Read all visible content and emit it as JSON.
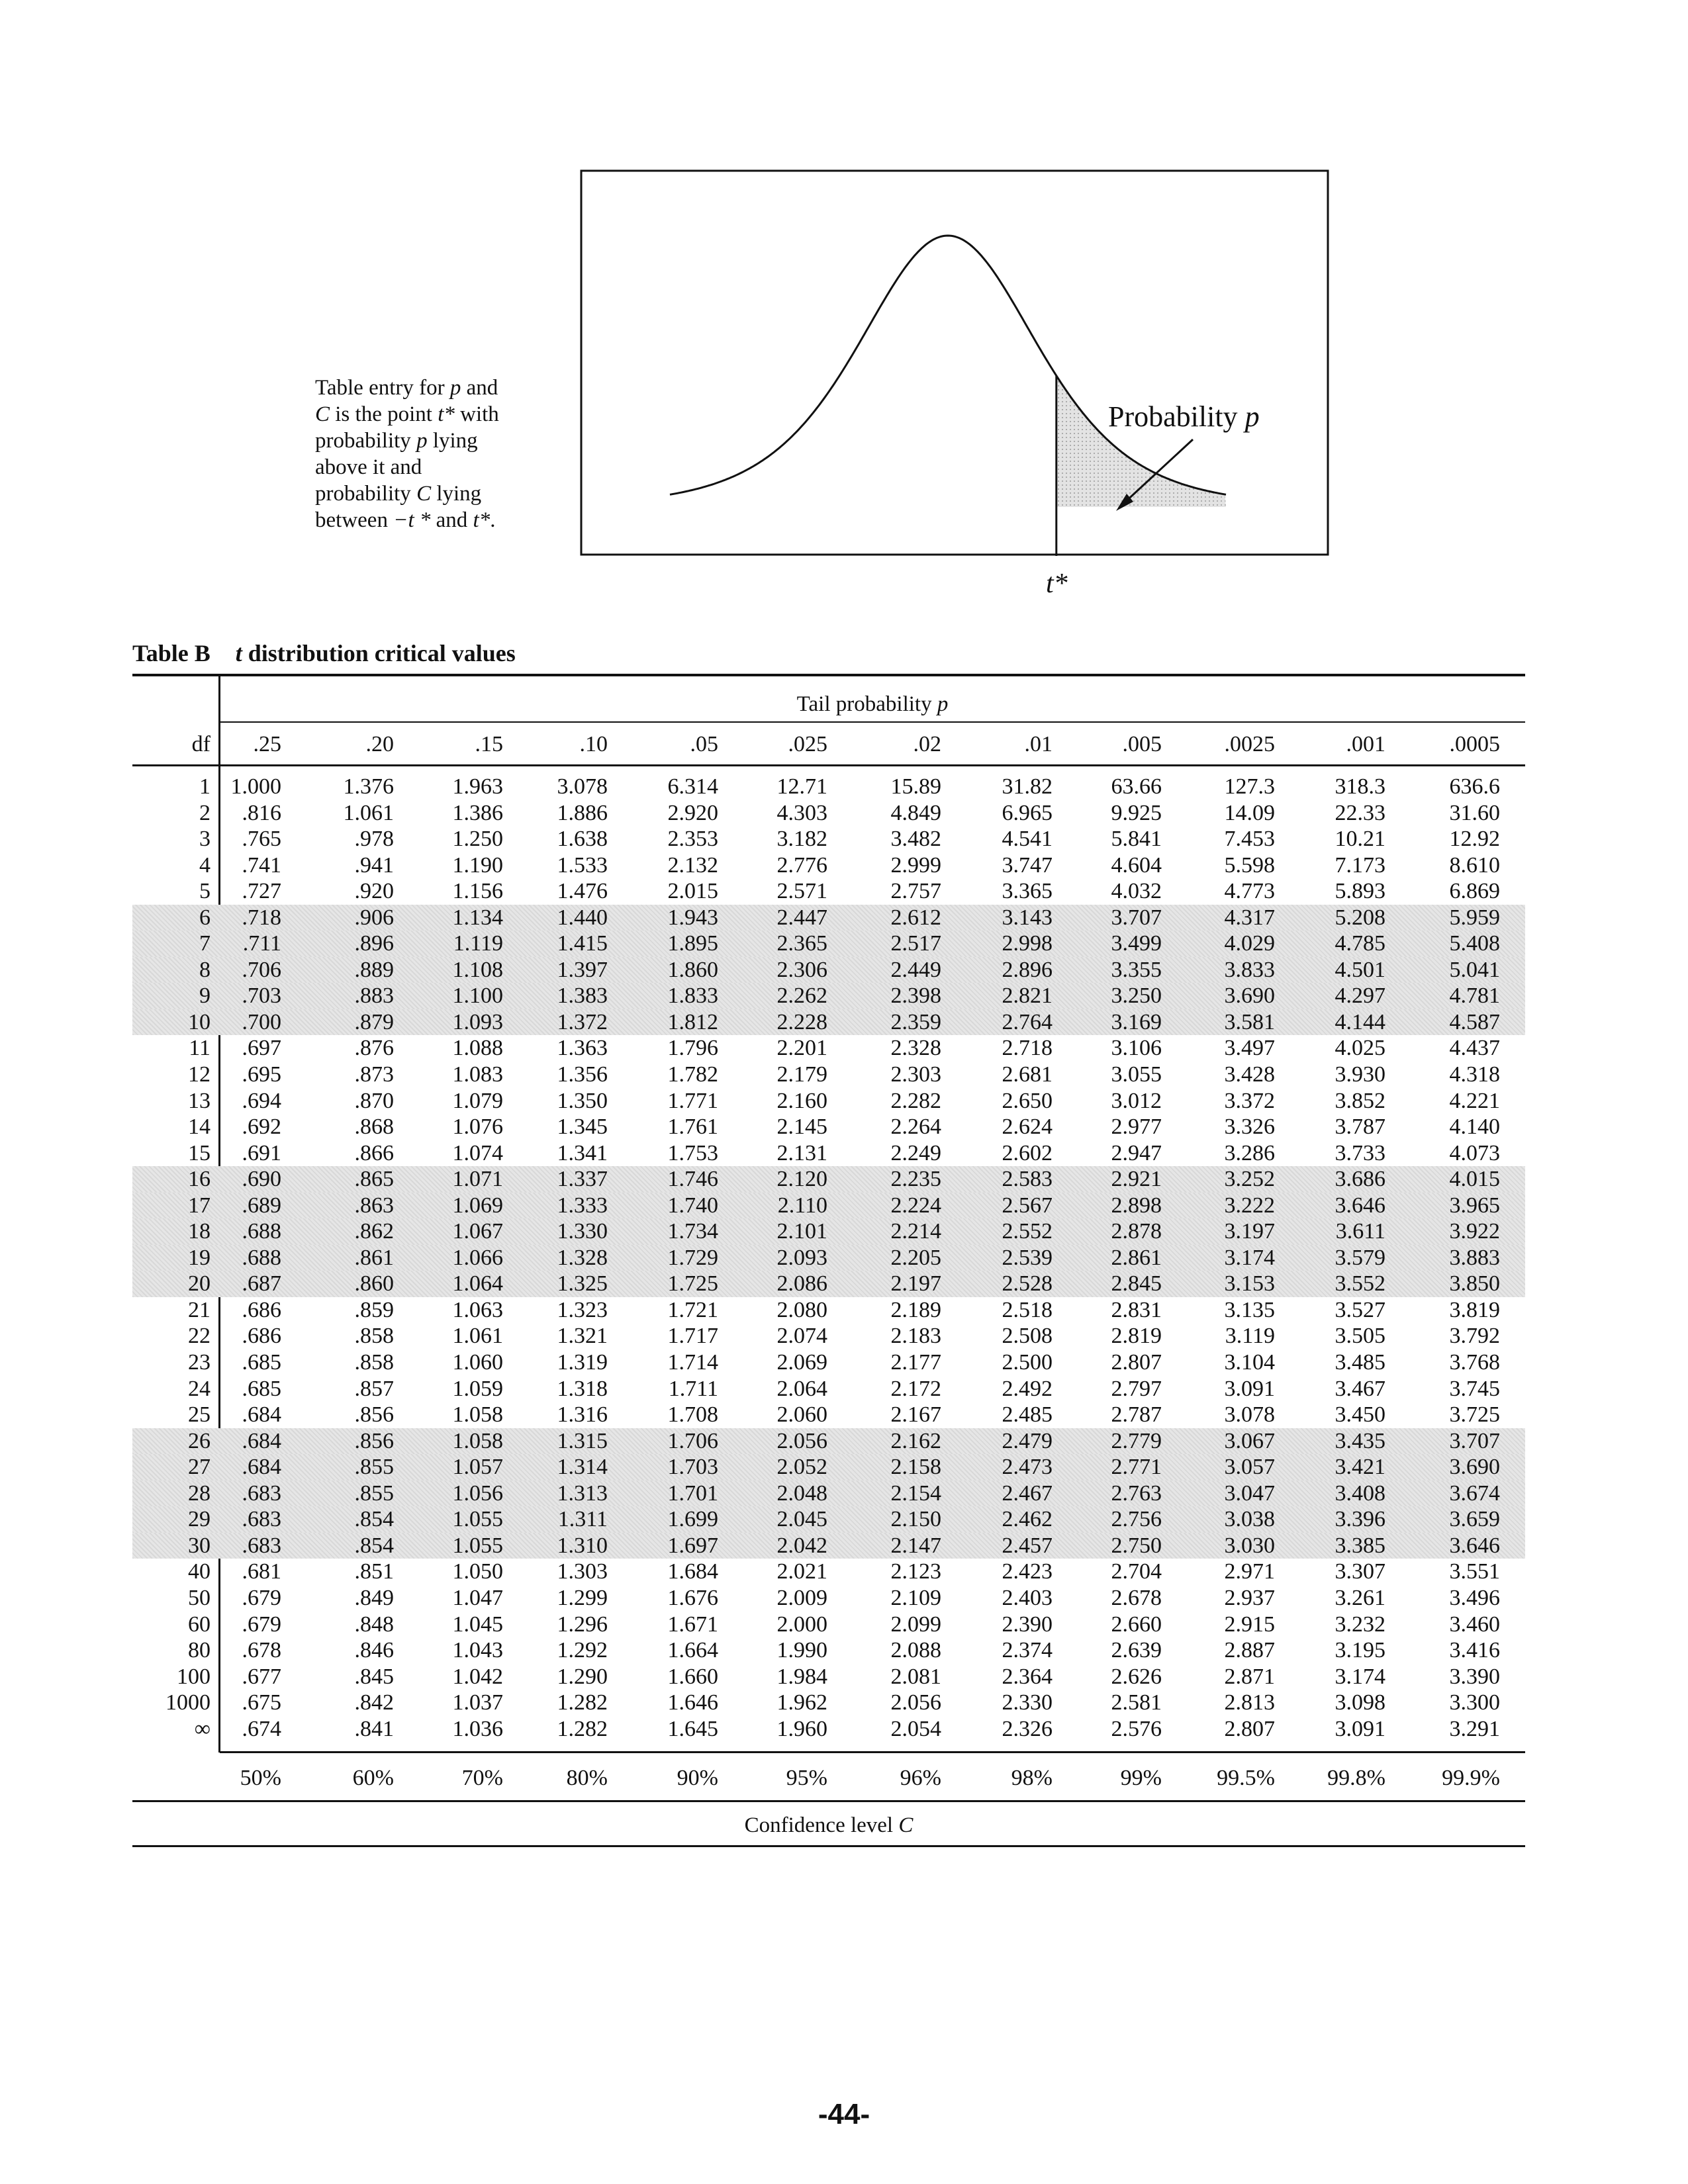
{
  "intro": {
    "line1a": "Table entry for ",
    "line1b": "p",
    "line1c": " and",
    "line2a": "C",
    "line2b": " is the point ",
    "line2c": "t*",
    "line2d": " with",
    "line3a": "probability ",
    "line3b": "p",
    "line3c": " lying",
    "line4": "above it and",
    "line5a": "probability ",
    "line5b": "C",
    "line5c": " lying",
    "line6a": "between  ",
    "line6b": "−t *",
    "line6c": "  and ",
    "line6d": "t*",
    "line6e": "."
  },
  "figure": {
    "probability_label": "Probability",
    "probability_symbol": "p",
    "tstar": "t*"
  },
  "table": {
    "title_letter": "Table B",
    "title_t": "t",
    "title_rest": " distribution critical values",
    "tail_label": "Tail probability ",
    "tail_symbol": "p",
    "df_label": "df",
    "headers": [
      ".25",
      ".20",
      ".15",
      ".10",
      ".05",
      ".025",
      ".02",
      ".01",
      ".005",
      ".0025",
      ".001",
      ".0005"
    ],
    "confidence": [
      "50%",
      "60%",
      "70%",
      "80%",
      "90%",
      "95%",
      "96%",
      "98%",
      "99%",
      "99.5%",
      "99.8%",
      "99.9%"
    ],
    "confidence_label": "Confidence level ",
    "confidence_symbol": "C",
    "rows": [
      {
        "df": "1",
        "v": [
          "1.000",
          "1.376",
          "1.963",
          "3.078",
          "6.314",
          "12.71",
          "15.89",
          "31.82",
          "63.66",
          "127.3",
          "318.3",
          "636.6"
        ]
      },
      {
        "df": "2",
        "v": [
          ".816",
          "1.061",
          "1.386",
          "1.886",
          "2.920",
          "4.303",
          "4.849",
          "6.965",
          "9.925",
          "14.09",
          "22.33",
          "31.60"
        ]
      },
      {
        "df": "3",
        "v": [
          ".765",
          ".978",
          "1.250",
          "1.638",
          "2.353",
          "3.182",
          "3.482",
          "4.541",
          "5.841",
          "7.453",
          "10.21",
          "12.92"
        ]
      },
      {
        "df": "4",
        "v": [
          ".741",
          ".941",
          "1.190",
          "1.533",
          "2.132",
          "2.776",
          "2.999",
          "3.747",
          "4.604",
          "5.598",
          "7.173",
          "8.610"
        ]
      },
      {
        "df": "5",
        "v": [
          ".727",
          ".920",
          "1.156",
          "1.476",
          "2.015",
          "2.571",
          "2.757",
          "3.365",
          "4.032",
          "4.773",
          "5.893",
          "6.869"
        ]
      },
      {
        "df": "6",
        "v": [
          ".718",
          ".906",
          "1.134",
          "1.440",
          "1.943",
          "2.447",
          "2.612",
          "3.143",
          "3.707",
          "4.317",
          "5.208",
          "5.959"
        ]
      },
      {
        "df": "7",
        "v": [
          ".711",
          ".896",
          "1.119",
          "1.415",
          "1.895",
          "2.365",
          "2.517",
          "2.998",
          "3.499",
          "4.029",
          "4.785",
          "5.408"
        ]
      },
      {
        "df": "8",
        "v": [
          ".706",
          ".889",
          "1.108",
          "1.397",
          "1.860",
          "2.306",
          "2.449",
          "2.896",
          "3.355",
          "3.833",
          "4.501",
          "5.041"
        ]
      },
      {
        "df": "9",
        "v": [
          ".703",
          ".883",
          "1.100",
          "1.383",
          "1.833",
          "2.262",
          "2.398",
          "2.821",
          "3.250",
          "3.690",
          "4.297",
          "4.781"
        ]
      },
      {
        "df": "10",
        "v": [
          ".700",
          ".879",
          "1.093",
          "1.372",
          "1.812",
          "2.228",
          "2.359",
          "2.764",
          "3.169",
          "3.581",
          "4.144",
          "4.587"
        ]
      },
      {
        "df": "11",
        "v": [
          ".697",
          ".876",
          "1.088",
          "1.363",
          "1.796",
          "2.201",
          "2.328",
          "2.718",
          "3.106",
          "3.497",
          "4.025",
          "4.437"
        ]
      },
      {
        "df": "12",
        "v": [
          ".695",
          ".873",
          "1.083",
          "1.356",
          "1.782",
          "2.179",
          "2.303",
          "2.681",
          "3.055",
          "3.428",
          "3.930",
          "4.318"
        ]
      },
      {
        "df": "13",
        "v": [
          ".694",
          ".870",
          "1.079",
          "1.350",
          "1.771",
          "2.160",
          "2.282",
          "2.650",
          "3.012",
          "3.372",
          "3.852",
          "4.221"
        ]
      },
      {
        "df": "14",
        "v": [
          ".692",
          ".868",
          "1.076",
          "1.345",
          "1.761",
          "2.145",
          "2.264",
          "2.624",
          "2.977",
          "3.326",
          "3.787",
          "4.140"
        ]
      },
      {
        "df": "15",
        "v": [
          ".691",
          ".866",
          "1.074",
          "1.341",
          "1.753",
          "2.131",
          "2.249",
          "2.602",
          "2.947",
          "3.286",
          "3.733",
          "4.073"
        ]
      },
      {
        "df": "16",
        "v": [
          ".690",
          ".865",
          "1.071",
          "1.337",
          "1.746",
          "2.120",
          "2.235",
          "2.583",
          "2.921",
          "3.252",
          "3.686",
          "4.015"
        ]
      },
      {
        "df": "17",
        "v": [
          ".689",
          ".863",
          "1.069",
          "1.333",
          "1.740",
          "2.110",
          "2.224",
          "2.567",
          "2.898",
          "3.222",
          "3.646",
          "3.965"
        ]
      },
      {
        "df": "18",
        "v": [
          ".688",
          ".862",
          "1.067",
          "1.330",
          "1.734",
          "2.101",
          "2.214",
          "2.552",
          "2.878",
          "3.197",
          "3.611",
          "3.922"
        ]
      },
      {
        "df": "19",
        "v": [
          ".688",
          ".861",
          "1.066",
          "1.328",
          "1.729",
          "2.093",
          "2.205",
          "2.539",
          "2.861",
          "3.174",
          "3.579",
          "3.883"
        ]
      },
      {
        "df": "20",
        "v": [
          ".687",
          ".860",
          "1.064",
          "1.325",
          "1.725",
          "2.086",
          "2.197",
          "2.528",
          "2.845",
          "3.153",
          "3.552",
          "3.850"
        ]
      },
      {
        "df": "21",
        "v": [
          ".686",
          ".859",
          "1.063",
          "1.323",
          "1.721",
          "2.080",
          "2.189",
          "2.518",
          "2.831",
          "3.135",
          "3.527",
          "3.819"
        ]
      },
      {
        "df": "22",
        "v": [
          ".686",
          ".858",
          "1.061",
          "1.321",
          "1.717",
          "2.074",
          "2.183",
          "2.508",
          "2.819",
          "3.119",
          "3.505",
          "3.792"
        ]
      },
      {
        "df": "23",
        "v": [
          ".685",
          ".858",
          "1.060",
          "1.319",
          "1.714",
          "2.069",
          "2.177",
          "2.500",
          "2.807",
          "3.104",
          "3.485",
          "3.768"
        ]
      },
      {
        "df": "24",
        "v": [
          ".685",
          ".857",
          "1.059",
          "1.318",
          "1.711",
          "2.064",
          "2.172",
          "2.492",
          "2.797",
          "3.091",
          "3.467",
          "3.745"
        ]
      },
      {
        "df": "25",
        "v": [
          ".684",
          ".856",
          "1.058",
          "1.316",
          "1.708",
          "2.060",
          "2.167",
          "2.485",
          "2.787",
          "3.078",
          "3.450",
          "3.725"
        ]
      },
      {
        "df": "26",
        "v": [
          ".684",
          ".856",
          "1.058",
          "1.315",
          "1.706",
          "2.056",
          "2.162",
          "2.479",
          "2.779",
          "3.067",
          "3.435",
          "3.707"
        ]
      },
      {
        "df": "27",
        "v": [
          ".684",
          ".855",
          "1.057",
          "1.314",
          "1.703",
          "2.052",
          "2.158",
          "2.473",
          "2.771",
          "3.057",
          "3.421",
          "3.690"
        ]
      },
      {
        "df": "28",
        "v": [
          ".683",
          ".855",
          "1.056",
          "1.313",
          "1.701",
          "2.048",
          "2.154",
          "2.467",
          "2.763",
          "3.047",
          "3.408",
          "3.674"
        ]
      },
      {
        "df": "29",
        "v": [
          ".683",
          ".854",
          "1.055",
          "1.311",
          "1.699",
          "2.045",
          "2.150",
          "2.462",
          "2.756",
          "3.038",
          "3.396",
          "3.659"
        ]
      },
      {
        "df": "30",
        "v": [
          ".683",
          ".854",
          "1.055",
          "1.310",
          "1.697",
          "2.042",
          "2.147",
          "2.457",
          "2.750",
          "3.030",
          "3.385",
          "3.646"
        ]
      },
      {
        "df": "40",
        "v": [
          ".681",
          ".851",
          "1.050",
          "1.303",
          "1.684",
          "2.021",
          "2.123",
          "2.423",
          "2.704",
          "2.971",
          "3.307",
          "3.551"
        ]
      },
      {
        "df": "50",
        "v": [
          ".679",
          ".849",
          "1.047",
          "1.299",
          "1.676",
          "2.009",
          "2.109",
          "2.403",
          "2.678",
          "2.937",
          "3.261",
          "3.496"
        ]
      },
      {
        "df": "60",
        "v": [
          ".679",
          ".848",
          "1.045",
          "1.296",
          "1.671",
          "2.000",
          "2.099",
          "2.390",
          "2.660",
          "2.915",
          "3.232",
          "3.460"
        ]
      },
      {
        "df": "80",
        "v": [
          ".678",
          ".846",
          "1.043",
          "1.292",
          "1.664",
          "1.990",
          "2.088",
          "2.374",
          "2.639",
          "2.887",
          "3.195",
          "3.416"
        ]
      },
      {
        "df": "100",
        "v": [
          ".677",
          ".845",
          "1.042",
          "1.290",
          "1.660",
          "1.984",
          "2.081",
          "2.364",
          "2.626",
          "2.871",
          "3.174",
          "3.390"
        ]
      },
      {
        "df": "1000",
        "v": [
          ".675",
          ".842",
          "1.037",
          "1.282",
          "1.646",
          "1.962",
          "2.056",
          "2.330",
          "2.581",
          "2.813",
          "3.098",
          "3.300"
        ]
      },
      {
        "df": "∞",
        "v": [
          ".674",
          ".841",
          "1.036",
          "1.282",
          "1.645",
          "1.960",
          "2.054",
          "2.326",
          "2.576",
          "2.807",
          "3.091",
          "3.291"
        ]
      }
    ],
    "shaded_rows": [
      6,
      7,
      8,
      9,
      10,
      16,
      17,
      18,
      19,
      20,
      26,
      27,
      28,
      29,
      30
    ]
  },
  "page_number": "-44-",
  "colors": {
    "shade": "#e6e6e6",
    "ink": "#111111"
  }
}
